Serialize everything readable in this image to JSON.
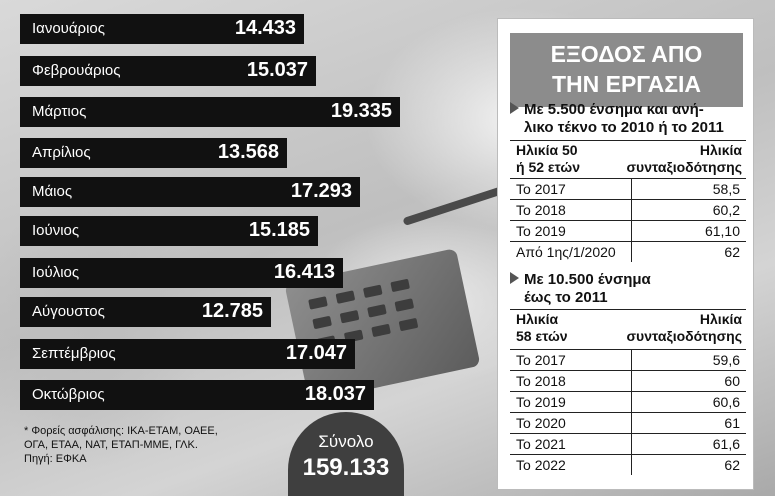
{
  "chart_data": {
    "type": "bar",
    "categories": [
      "Ιανουάριος",
      "Φεβρουάριος",
      "Μάρτιος",
      "Απρίλιος",
      "Μάιος",
      "Ιούνιος",
      "Ιούλιος",
      "Αύγουστος",
      "Σεπτέμβριος",
      "Οκτώβριος"
    ],
    "values": [
      14433,
      15037,
      19335,
      13568,
      17293,
      15185,
      16413,
      12785,
      17047,
      18037
    ],
    "value_labels": [
      "14.433",
      "15.037",
      "19.335",
      "13.568",
      "17.293",
      "15.185",
      "16.413",
      "12.785",
      "17.047",
      "18.037"
    ],
    "bar_color": "#111111"
  },
  "notes": {
    "line1": "* Φορείς ασφάλισης: ΙΚΑ-ΕΤΑΜ, ΟΑΕΕ,",
    "line2": "ΟΓΑ, ΕΤΑΑ, ΝΑΤ, ΕΤΑΠ-ΜΜΕ, ΓΛΚ.",
    "line3": "Πηγή: ΕΦΚΑ"
  },
  "total": {
    "label": "Σύνολο",
    "value": "159.133"
  },
  "panel": {
    "title_line1": "ΕΞΟΔΟΣ ΑΠΟ",
    "title_line2": "ΤΗΝ ΕΡΓΑΣΙΑ",
    "section1": {
      "heading_line1": "Με 5.500 ένσημα και ανή-",
      "heading_line2": "λικο τέκνο το 2010 ή το 2011",
      "col1_line1": "Ηλικία 50",
      "col1_line2": "ή 52 ετών",
      "col2_line1": "Ηλικία",
      "col2_line2": "συνταξιοδότησης",
      "rows": [
        {
          "period": "Το 2017",
          "age": "58,5"
        },
        {
          "period": "Το 2018",
          "age": "60,2"
        },
        {
          "period": "Το 2019",
          "age": "61,10"
        },
        {
          "period": "Από 1ης/1/2020",
          "age": "62"
        }
      ]
    },
    "section2": {
      "heading_line1": "Με 10.500 ένσημα",
      "heading_line2": "έως το 2011",
      "col1_line1": "Ηλικία",
      "col1_line2": "58 ετών",
      "col2_line1": "Ηλικία",
      "col2_line2": "συνταξιοδότησης",
      "rows": [
        {
          "period": "Το 2017",
          "age": "59,6"
        },
        {
          "period": "Το 2018",
          "age": "60"
        },
        {
          "period": "Το 2019",
          "age": "60,6"
        },
        {
          "period": "Το 2020",
          "age": "61"
        },
        {
          "period": "Το 2021",
          "age": "61,6"
        },
        {
          "period": "Το 2022",
          "age": "62"
        }
      ]
    }
  }
}
